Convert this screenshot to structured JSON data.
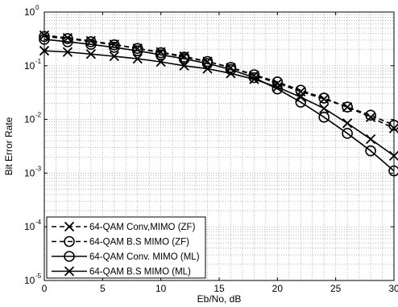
{
  "chart_data": {
    "type": "line",
    "title": "",
    "xlabel": "Eb/No, dB",
    "ylabel": "Bit Error Rate",
    "xlim": [
      0,
      30
    ],
    "ylim": [
      1e-05,
      1
    ],
    "yscale": "log",
    "grid": true,
    "legend_position": "bottom-left",
    "x_ticks": [
      "0",
      "5",
      "10",
      "15",
      "20",
      "25",
      "30"
    ],
    "y_ticks": [
      {
        "base": "10",
        "exp": "0"
      },
      {
        "base": "10",
        "exp": "-1"
      },
      {
        "base": "10",
        "exp": "-2"
      },
      {
        "base": "10",
        "exp": "-3"
      },
      {
        "base": "10",
        "exp": "-4"
      },
      {
        "base": "10",
        "exp": "-5"
      }
    ],
    "series": [
      {
        "name": "64-QAM Conv,MIMO (ZF)",
        "marker": "x",
        "dash": "dashed",
        "color": "#000000",
        "x": [
          0,
          2,
          4,
          6,
          8,
          10,
          12,
          14,
          16,
          18,
          20,
          22,
          24,
          26,
          28,
          30
        ],
        "y": [
          0.37,
          0.33,
          0.29,
          0.25,
          0.21,
          0.18,
          0.15,
          0.12,
          0.092,
          0.066,
          0.047,
          0.033,
          0.024,
          0.017,
          0.011,
          0.0068
        ]
      },
      {
        "name": "64-QAM B.S MIMO (ZF)",
        "marker": "o",
        "dash": "dashed",
        "color": "#000000",
        "x": [
          0,
          2,
          4,
          6,
          8,
          10,
          12,
          14,
          16,
          18,
          20,
          22,
          24,
          26,
          28,
          30
        ],
        "y": [
          0.35,
          0.32,
          0.28,
          0.245,
          0.21,
          0.175,
          0.145,
          0.12,
          0.093,
          0.068,
          0.05,
          0.035,
          0.025,
          0.017,
          0.012,
          0.0078
        ]
      },
      {
        "name": "64-QAM Conv. MIMO (ML)",
        "marker": "o",
        "dash": "solid",
        "color": "#000000",
        "x": [
          0,
          2,
          4,
          6,
          8,
          10,
          12,
          14,
          16,
          18,
          20,
          22,
          24,
          26,
          28,
          30
        ],
        "y": [
          0.31,
          0.28,
          0.25,
          0.22,
          0.19,
          0.16,
          0.135,
          0.11,
          0.085,
          0.06,
          0.037,
          0.021,
          0.011,
          0.0055,
          0.0026,
          0.0011
        ]
      },
      {
        "name": "64-QAM B.S MIMO (ML)",
        "marker": "x",
        "dash": "solid",
        "color": "#000000",
        "x": [
          0,
          2,
          4,
          6,
          8,
          10,
          12,
          14,
          16,
          18,
          20,
          22,
          24,
          26,
          28,
          30
        ],
        "y": [
          0.19,
          0.18,
          0.165,
          0.15,
          0.135,
          0.118,
          0.1,
          0.088,
          0.072,
          0.056,
          0.04,
          0.026,
          0.016,
          0.0085,
          0.0043,
          0.0021
        ]
      }
    ]
  }
}
